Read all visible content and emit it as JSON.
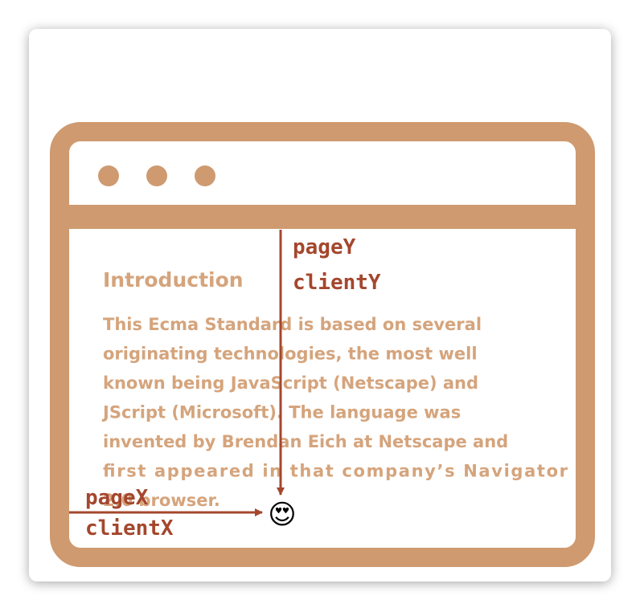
{
  "article": {
    "heading": "Introduction",
    "paragraph_lines": [
      "This Ecma Standard is based on several",
      "originating technologies, the most well",
      "known being JavaScript (Netscape) and",
      "JScript (Microsoft). The language was",
      "invented by Brendan Eich at Netscape and",
      "first appeared in that company’s Navigator",
      "2.0 browser."
    ]
  },
  "labels": {
    "page_y": "pageY",
    "client_y": "clientY",
    "page_x": "pageX",
    "client_x": "clientX"
  },
  "pointer": {
    "emoji": "😍"
  },
  "colors": {
    "frame": "#cf9a6f",
    "text": "#d5a47c",
    "arrow": "#a4472d",
    "label": "#a4472d"
  },
  "icons": {
    "window_dots": "traffic-light-dots"
  }
}
